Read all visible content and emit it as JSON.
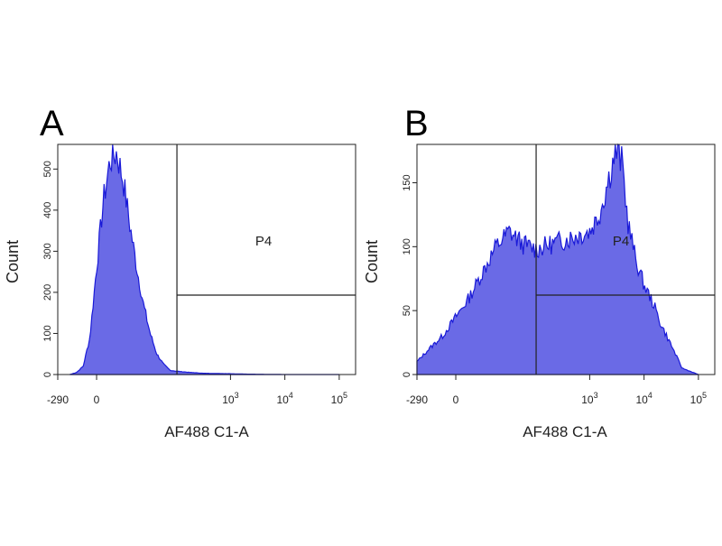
{
  "panels": [
    {
      "letter": "A",
      "ylabel": "Count",
      "xlabel": "AF488 C1-A",
      "gate_label": "P4"
    },
    {
      "letter": "B",
      "ylabel": "Count",
      "xlabel": "AF488 C1-A",
      "gate_label": "P4"
    }
  ],
  "chart_data": [
    {
      "type": "area",
      "panel": "A",
      "xlabel": "AF488 C1-A",
      "ylabel": "Count",
      "x_scale": "biexponential",
      "xlim": [
        -290,
        200000
      ],
      "ylim": [
        0,
        560
      ],
      "x_ticks": [
        "-290",
        "0",
        "10^3",
        "10^4",
        "10^5"
      ],
      "y_ticks": [
        0,
        100,
        200,
        300,
        400,
        500
      ],
      "fill_color": "#6a6ae6",
      "line_color": "#1a1ad8",
      "gate": {
        "name": "P4",
        "x_min": 600,
        "x_max": 200000
      },
      "x": [
        -200,
        -150,
        -100,
        -50,
        0,
        50,
        100,
        150,
        200,
        250,
        300,
        350,
        400,
        450,
        500,
        550,
        600,
        700,
        800,
        1000,
        2000,
        10000,
        100000
      ],
      "y": [
        0,
        5,
        20,
        90,
        260,
        420,
        520,
        540,
        470,
        360,
        260,
        170,
        100,
        50,
        25,
        10,
        8,
        5,
        3,
        2,
        1,
        0,
        0
      ]
    },
    {
      "type": "area",
      "panel": "B",
      "xlabel": "AF488 C1-A",
      "ylabel": "Count",
      "x_scale": "biexponential",
      "xlim": [
        -290,
        200000
      ],
      "ylim": [
        0,
        180
      ],
      "x_ticks": [
        "-290",
        "0",
        "10^3",
        "10^4",
        "10^5"
      ],
      "y_ticks": [
        0,
        50,
        100,
        150
      ],
      "fill_color": "#6a6ae6",
      "line_color": "#1a1ad8",
      "gate": {
        "name": "P4",
        "x_min": 600,
        "x_max": 200000
      },
      "x": [
        -290,
        -200,
        -100,
        0,
        100,
        200,
        300,
        400,
        500,
        600,
        800,
        1000,
        1500,
        2000,
        3000,
        4000,
        5000,
        7000,
        10000,
        15000,
        20000,
        30000,
        50000,
        100000
      ],
      "y": [
        10,
        20,
        30,
        45,
        60,
        80,
        100,
        112,
        102,
        98,
        105,
        112,
        125,
        145,
        175,
        165,
        120,
        90,
        70,
        55,
        40,
        25,
        5,
        0
      ]
    }
  ]
}
